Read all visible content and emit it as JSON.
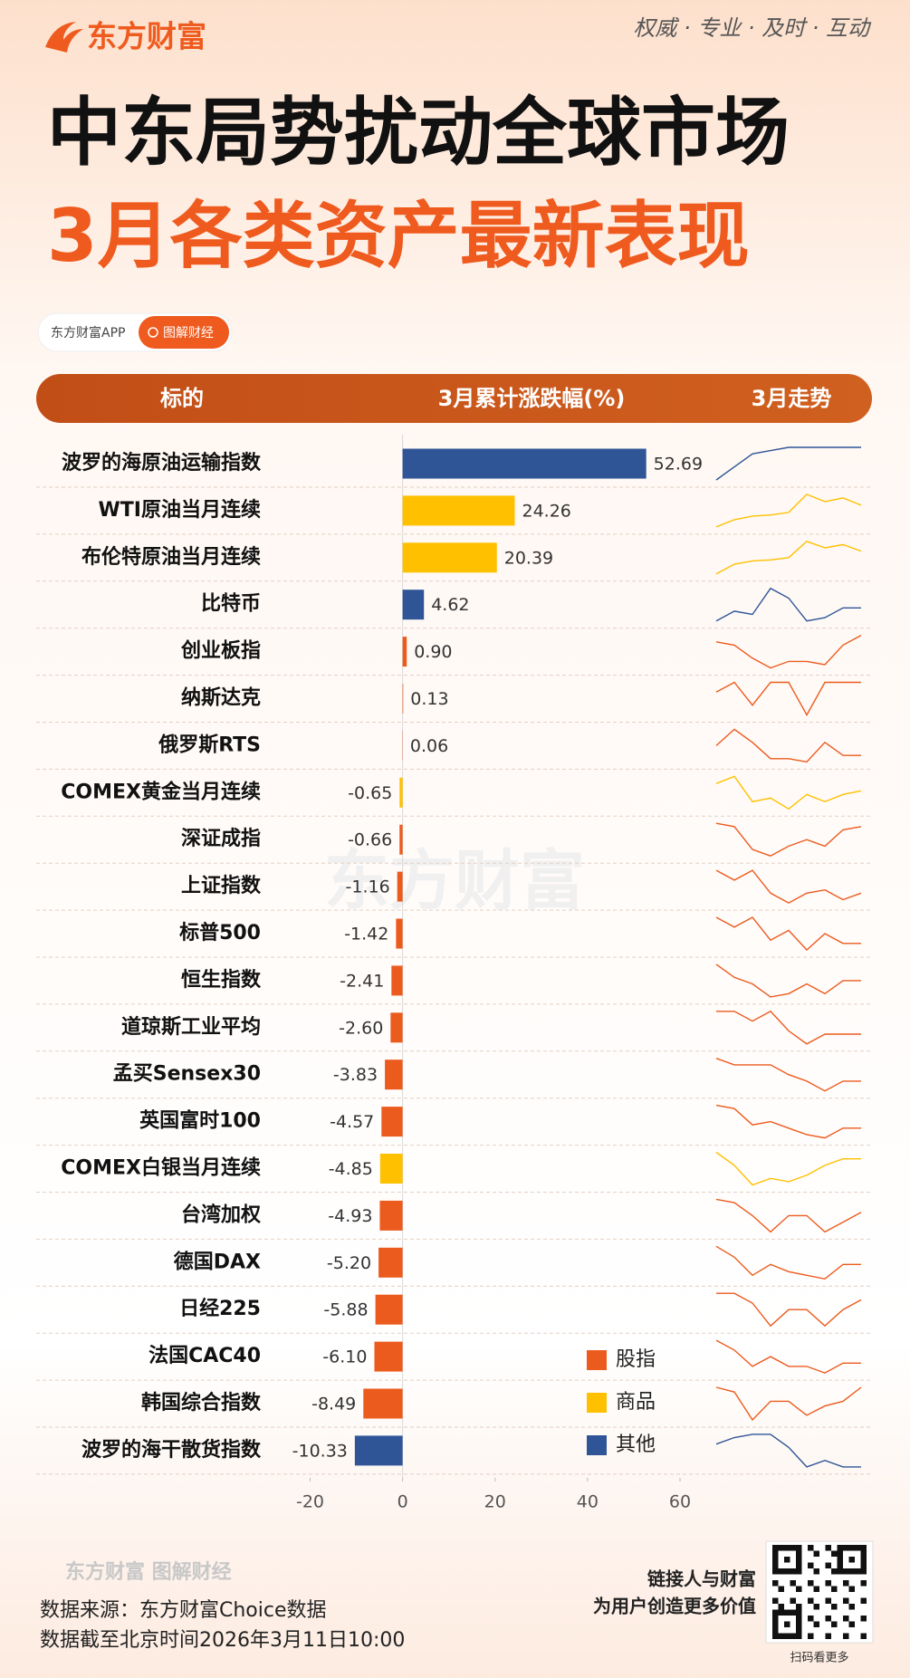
{
  "header": {
    "logo": "东方财富",
    "tagline": "权威 · 专业 · 及时 · 互动",
    "title": "中东局势扰动全球市场",
    "subtitle": "3月各类资产最新表现",
    "app": "东方财富APP",
    "tag": "图解财经"
  },
  "columns": [
    "标的",
    "3月累计涨跌幅(%)",
    "3月走势"
  ],
  "chart_data": {
    "type": "bar",
    "orientation": "horizontal",
    "categories": [
      "波罗的海原油运输指数",
      "WTI原油当月连续",
      "布伦特原油当月连续",
      "比特币",
      "创业板指",
      "纳斯达克",
      "俄罗斯RTS",
      "COMEX黄金当月连续",
      "深证成指",
      "上证指数",
      "标普500",
      "恒生指数",
      "道琼斯工业平均",
      "孟买Sensex30",
      "英国富时100",
      "COMEX白银当月连续",
      "台湾加权",
      "德国DAX",
      "日经225",
      "法国CAC40",
      "韩国综合指数",
      "波罗的海干散货指数"
    ],
    "series": [
      {
        "name": "股指",
        "color": "#ec5b1e",
        "values": [
          null,
          null,
          null,
          null,
          0.9,
          0.13,
          0.06,
          null,
          -0.66,
          -1.16,
          -1.42,
          -2.41,
          -2.6,
          -3.83,
          -4.57,
          null,
          -4.93,
          -5.2,
          -5.88,
          -6.1,
          -8.49,
          null
        ],
        "value_labels": [
          null,
          null,
          null,
          null,
          "0.90",
          "0.13",
          "0.06",
          null,
          "-0.66",
          "-1.16",
          "-1.42",
          "-2.41",
          "-2.60",
          "-3.83",
          "-4.57",
          null,
          "-4.93",
          "-5.20",
          "-5.88",
          "-6.10",
          "-8.49",
          null
        ]
      },
      {
        "name": "商品",
        "color": "#ffc000",
        "values": [
          null,
          24.26,
          20.39,
          null,
          null,
          null,
          null,
          -0.65,
          null,
          null,
          null,
          null,
          null,
          null,
          null,
          -4.85,
          null,
          null,
          null,
          null,
          null,
          null
        ],
        "value_labels": [
          null,
          "24.26",
          "20.39",
          null,
          null,
          null,
          null,
          "-0.65",
          null,
          null,
          null,
          null,
          null,
          null,
          null,
          "-4.85",
          null,
          null,
          null,
          null,
          null,
          null
        ]
      },
      {
        "name": "其他",
        "color": "#2f5597",
        "values": [
          52.69,
          null,
          null,
          4.62,
          null,
          null,
          null,
          null,
          null,
          null,
          null,
          null,
          null,
          null,
          null,
          null,
          null,
          null,
          null,
          null,
          null,
          -10.33
        ],
        "value_labels": [
          "52.69",
          null,
          null,
          "4.62",
          null,
          null,
          null,
          null,
          null,
          null,
          null,
          null,
          null,
          null,
          null,
          null,
          null,
          null,
          null,
          null,
          null,
          "-10.33"
        ]
      }
    ],
    "trends": [
      [
        0,
        4,
        8,
        9,
        10,
        10,
        10,
        10,
        10
      ],
      [
        0,
        2,
        3,
        3.3,
        4,
        9,
        7,
        8,
        6
      ],
      [
        0,
        3,
        4,
        4.3,
        5,
        10,
        8,
        9,
        7
      ],
      [
        0,
        3,
        2,
        10,
        7,
        0,
        1,
        4,
        4
      ],
      [
        8,
        7,
        3,
        0,
        2,
        2,
        1,
        7,
        10
      ],
      [
        7,
        10,
        3,
        10,
        10,
        0,
        10,
        10,
        10
      ],
      [
        5,
        10,
        6,
        1,
        1,
        0,
        6,
        2,
        2
      ],
      [
        8,
        10,
        3,
        4,
        1,
        5,
        3,
        5,
        6
      ],
      [
        10,
        9,
        2,
        0,
        3,
        5,
        3,
        8,
        9
      ],
      [
        10,
        7,
        10,
        3,
        0,
        3,
        4,
        1,
        3
      ],
      [
        10,
        7,
        10,
        3,
        6,
        0,
        5,
        2,
        2
      ],
      [
        10,
        6,
        4,
        0,
        1,
        4,
        1,
        5,
        5
      ],
      [
        10,
        10,
        7,
        10,
        4,
        0,
        3,
        3,
        3
      ],
      [
        10,
        8,
        8,
        8,
        5,
        3,
        0,
        3,
        3
      ],
      [
        10,
        9,
        4,
        5,
        3,
        1,
        0,
        3,
        3
      ],
      [
        10,
        6,
        0,
        2,
        1,
        3,
        6,
        8,
        8
      ],
      [
        10,
        9,
        5,
        0,
        5,
        5,
        0,
        3,
        6
      ],
      [
        10,
        7,
        2,
        5,
        3,
        2,
        1,
        5,
        5
      ],
      [
        10,
        10,
        7,
        0,
        5,
        5,
        0,
        5,
        8
      ],
      [
        10,
        7,
        2,
        5,
        2,
        2,
        0,
        3,
        3
      ],
      [
        10,
        9,
        3,
        7,
        7,
        4,
        6,
        7,
        10
      ],
      [
        7,
        9,
        10,
        10,
        6,
        0,
        2,
        0,
        0
      ]
    ],
    "xlim": [
      -20,
      60
    ],
    "xticks": [
      -20,
      0,
      20,
      40,
      60
    ],
    "legend": "lower-right"
  },
  "watermark": "东方财富",
  "footer": {
    "brand": "东方财富 图解财经",
    "source": "数据来源：东方财富Choice数据",
    "date": "数据截至北京时间2026年3月11日10:00",
    "slogan1": "链接人与财富",
    "slogan2": "为用户创造更多价值",
    "qr": "扫码看更多"
  }
}
